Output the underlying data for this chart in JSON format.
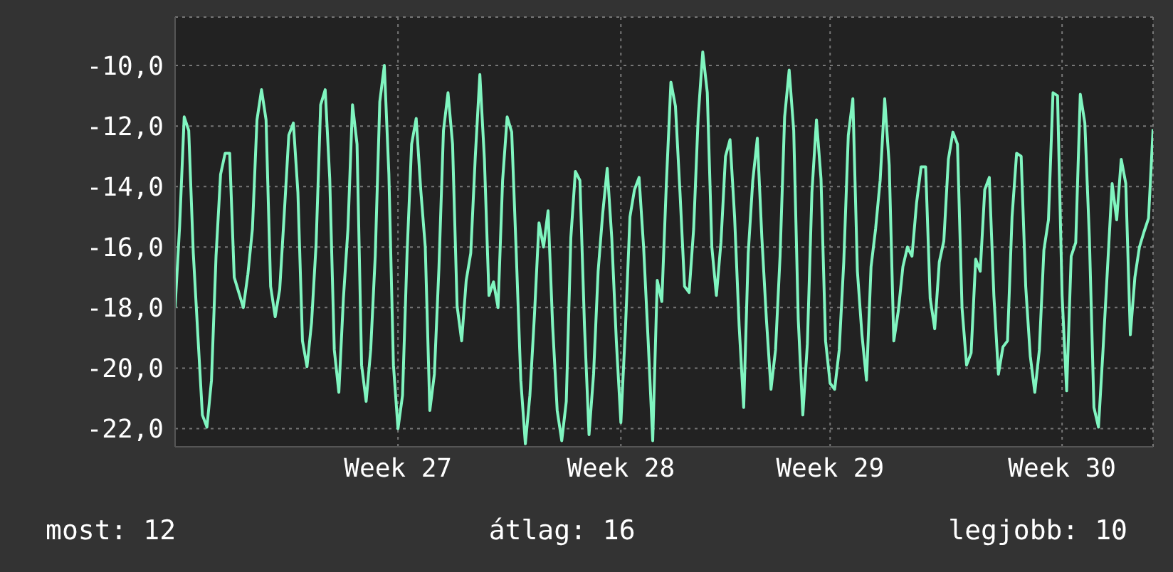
{
  "chart_data": {
    "type": "line",
    "ylim": [
      -22.6,
      -8.4
    ],
    "categories": [
      null,
      null,
      null,
      null,
      null,
      null,
      null,
      null,
      null,
      null,
      null,
      null,
      null,
      null,
      null,
      null,
      null,
      null,
      null,
      null,
      null,
      null,
      null,
      null,
      null,
      null,
      null,
      null,
      null,
      null,
      null,
      null,
      null,
      null,
      null,
      null,
      null,
      null,
      null,
      null,
      null,
      null,
      null,
      null,
      null,
      null,
      null,
      null,
      null,
      "Week 27",
      null,
      null,
      null,
      null,
      null,
      null,
      null,
      null,
      null,
      null,
      null,
      null,
      null,
      null,
      null,
      null,
      null,
      null,
      null,
      null,
      null,
      null,
      null,
      null,
      null,
      null,
      null,
      null,
      null,
      null,
      null,
      null,
      null,
      null,
      null,
      null,
      null,
      null,
      null,
      null,
      null,
      null,
      null,
      null,
      null,
      null,
      null,
      null,
      "Week 28",
      null,
      null,
      null,
      null,
      null,
      null,
      null,
      null,
      null,
      null,
      null,
      null,
      null,
      null,
      null,
      null,
      null,
      null,
      null,
      null,
      null,
      null,
      null,
      null,
      null,
      null,
      null,
      null,
      null,
      null,
      null,
      null,
      null,
      null,
      null,
      null,
      null,
      null,
      null,
      null,
      null,
      null,
      null,
      null,
      null,
      "Week 29",
      null,
      null,
      null,
      null,
      null,
      null,
      null,
      null,
      null,
      null,
      null,
      null,
      null,
      null,
      null,
      null,
      null,
      null,
      null,
      null,
      null,
      null,
      null,
      null,
      null,
      null,
      null,
      null,
      null,
      null,
      null,
      null,
      null,
      null,
      null,
      null,
      null,
      null,
      null,
      null,
      null,
      null,
      null,
      null,
      null,
      null,
      null,
      null,
      null,
      null,
      "Week 30",
      null,
      null,
      null,
      null,
      null,
      null,
      null,
      null,
      null,
      null,
      null,
      null,
      null,
      null,
      null,
      null,
      null,
      null,
      null,
      null
    ],
    "yticks": [
      {
        "value": -22,
        "label": "-22,0"
      },
      {
        "value": -20,
        "label": "-20,0"
      },
      {
        "value": -18,
        "label": "-18,0"
      },
      {
        "value": -16,
        "label": "-16,0"
      },
      {
        "value": -14,
        "label": "-14,0"
      },
      {
        "value": -12,
        "label": "-12,0"
      },
      {
        "value": -10,
        "label": "-10,0"
      }
    ],
    "grid": true,
    "marker": "none",
    "line_style": "solid",
    "annotations": [
      "most: 12",
      "átlag: 16",
      "legjobb: 10"
    ],
    "series": [
      {
        "color": "#80f5c0",
        "values": [
          -18.0,
          -15.3,
          -11.7,
          -12.15,
          -16.2,
          -18.9,
          -21.55,
          -21.95,
          -20.4,
          -16.3,
          -13.6,
          -12.9,
          -12.9,
          -17.0,
          -17.5,
          -18.0,
          -16.9,
          -15.4,
          -11.8,
          -10.8,
          -11.8,
          -17.3,
          -18.3,
          -17.4,
          -14.9,
          -12.3,
          -11.9,
          -14.2,
          -19.1,
          -19.95,
          -18.5,
          -15.9,
          -11.3,
          -10.8,
          -13.75,
          -19.4,
          -20.8,
          -17.7,
          -15.4,
          -11.3,
          -12.6,
          -19.9,
          -21.1,
          -19.4,
          -16.3,
          -11.2,
          -10.0,
          -13.6,
          -19.9,
          -22.0,
          -20.9,
          -16.2,
          -12.6,
          -11.75,
          -14.1,
          -16.0,
          -21.4,
          -20.2,
          -16.7,
          -12.15,
          -10.9,
          -12.6,
          -17.95,
          -19.1,
          -17.1,
          -16.2,
          -13.0,
          -10.3,
          -13.1,
          -17.6,
          -17.15,
          -18.0,
          -13.8,
          -11.7,
          -12.2,
          -16.2,
          -20.4,
          -22.5,
          -20.9,
          -18.25,
          -15.2,
          -16.0,
          -14.8,
          -18.6,
          -21.4,
          -22.4,
          -21.1,
          -15.7,
          -13.5,
          -13.8,
          -18.6,
          -22.2,
          -20.2,
          -16.8,
          -14.9,
          -13.4,
          -15.7,
          -19.1,
          -21.8,
          -18.7,
          -15.0,
          -14.1,
          -13.7,
          -16.0,
          -19.1,
          -22.4,
          -17.1,
          -17.8,
          -13.9,
          -10.55,
          -11.35,
          -14.2,
          -17.3,
          -17.5,
          -15.4,
          -11.7,
          -9.55,
          -10.9,
          -16.0,
          -17.6,
          -15.85,
          -13.0,
          -12.45,
          -15.0,
          -18.6,
          -21.3,
          -16.2,
          -13.8,
          -12.4,
          -15.7,
          -18.4,
          -20.7,
          -19.4,
          -16.3,
          -11.7,
          -10.15,
          -12.15,
          -18.4,
          -21.55,
          -19.2,
          -14.2,
          -11.8,
          -13.75,
          -19.1,
          -20.5,
          -20.7,
          -19.4,
          -16.5,
          -12.3,
          -11.1,
          -16.8,
          -18.9,
          -20.4,
          -16.65,
          -15.4,
          -13.8,
          -11.1,
          -13.3,
          -19.1,
          -18.1,
          -16.65,
          -16.0,
          -16.3,
          -14.55,
          -13.35,
          -13.35,
          -17.7,
          -18.7,
          -16.5,
          -15.8,
          -13.1,
          -12.2,
          -12.6,
          -18.0,
          -19.9,
          -19.5,
          -16.4,
          -16.8,
          -14.1,
          -13.7,
          -17.6,
          -20.2,
          -19.3,
          -19.1,
          -15.0,
          -12.9,
          -13.0,
          -17.3,
          -19.6,
          -20.8,
          -19.4,
          -16.1,
          -15.1,
          -10.9,
          -11.0,
          -17.6,
          -20.75,
          -16.3,
          -15.85,
          -10.95,
          -11.9,
          -15.7,
          -21.3,
          -21.95,
          -19.4,
          -16.65,
          -13.9,
          -15.1,
          -13.1,
          -13.9,
          -18.9,
          -17.0,
          -16.0,
          -15.5,
          -15.05,
          -12.1
        ]
      }
    ]
  }
}
